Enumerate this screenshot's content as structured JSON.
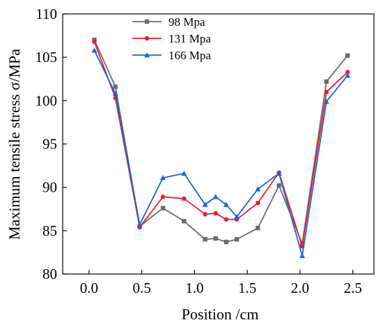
{
  "chart_data": {
    "type": "line",
    "xlabel": "Position /cm",
    "ylabel": "Maximum tensile stress σ/MPa",
    "xlim": [
      -0.25,
      2.7
    ],
    "ylim": [
      80,
      110
    ],
    "xticks": [
      "0.0",
      "0.5",
      "1.0",
      "1.5",
      "2.0",
      "2.5"
    ],
    "xtick_values": [
      0,
      0.5,
      1.0,
      1.5,
      2.0,
      2.5
    ],
    "yticks": [
      "80",
      "85",
      "90",
      "95",
      "100",
      "105",
      "110"
    ],
    "ytick_values": [
      80,
      85,
      90,
      95,
      100,
      105,
      110
    ],
    "grid": false,
    "legend_position": "top-center",
    "x": [
      0.05,
      0.25,
      0.48,
      0.7,
      0.9,
      1.1,
      1.2,
      1.3,
      1.4,
      1.6,
      1.8,
      2.02,
      2.25,
      2.45
    ],
    "series": [
      {
        "name": "98 Mpa",
        "color": "#6b6b6b",
        "marker": "square",
        "values": [
          107.0,
          101.6,
          85.5,
          87.6,
          86.1,
          84.0,
          84.1,
          83.7,
          84.0,
          85.3,
          90.2,
          83.5,
          102.2,
          105.2
        ]
      },
      {
        "name": "131 Mpa",
        "color": "#ee1c25",
        "marker": "circle",
        "values": [
          106.8,
          100.3,
          85.4,
          88.9,
          88.7,
          86.9,
          87.0,
          86.3,
          86.3,
          88.2,
          91.7,
          83.2,
          101.0,
          103.3
        ]
      },
      {
        "name": "166 Mpa",
        "color": "#1565d8",
        "marker": "triangle",
        "values": [
          105.8,
          100.8,
          85.7,
          91.1,
          91.6,
          88.0,
          88.9,
          88.0,
          86.6,
          89.8,
          91.6,
          82.1,
          99.9,
          102.9
        ]
      }
    ]
  }
}
